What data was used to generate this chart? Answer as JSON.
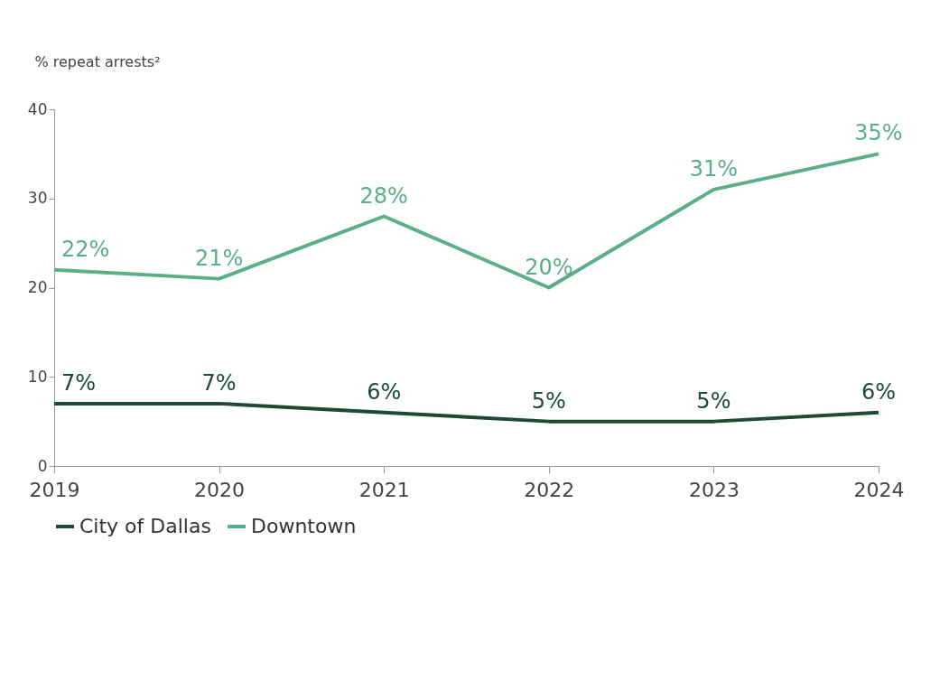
{
  "chart_data": {
    "type": "line",
    "ylabel": "% repeat arrests²",
    "categories": [
      "2019",
      "2020",
      "2021",
      "2022",
      "2023",
      "2024"
    ],
    "series": [
      {
        "name": "City of Dallas",
        "color": "#1d4a35",
        "values": [
          7,
          7,
          6,
          5,
          5,
          6
        ],
        "value_labels": [
          "7%",
          "7%",
          "6%",
          "5%",
          "5%",
          "6%"
        ]
      },
      {
        "name": "Downtown",
        "color": "#5aae88",
        "values": [
          22,
          21,
          28,
          20,
          31,
          35
        ],
        "value_labels": [
          "22%",
          "21%",
          "28%",
          "20%",
          "31%",
          "35%"
        ]
      }
    ],
    "ylim": [
      0,
      40
    ],
    "yticks": [
      0,
      10,
      20,
      30,
      40
    ],
    "grid": false,
    "legend": "bottom",
    "marker": "none",
    "line_style": "solid"
  }
}
